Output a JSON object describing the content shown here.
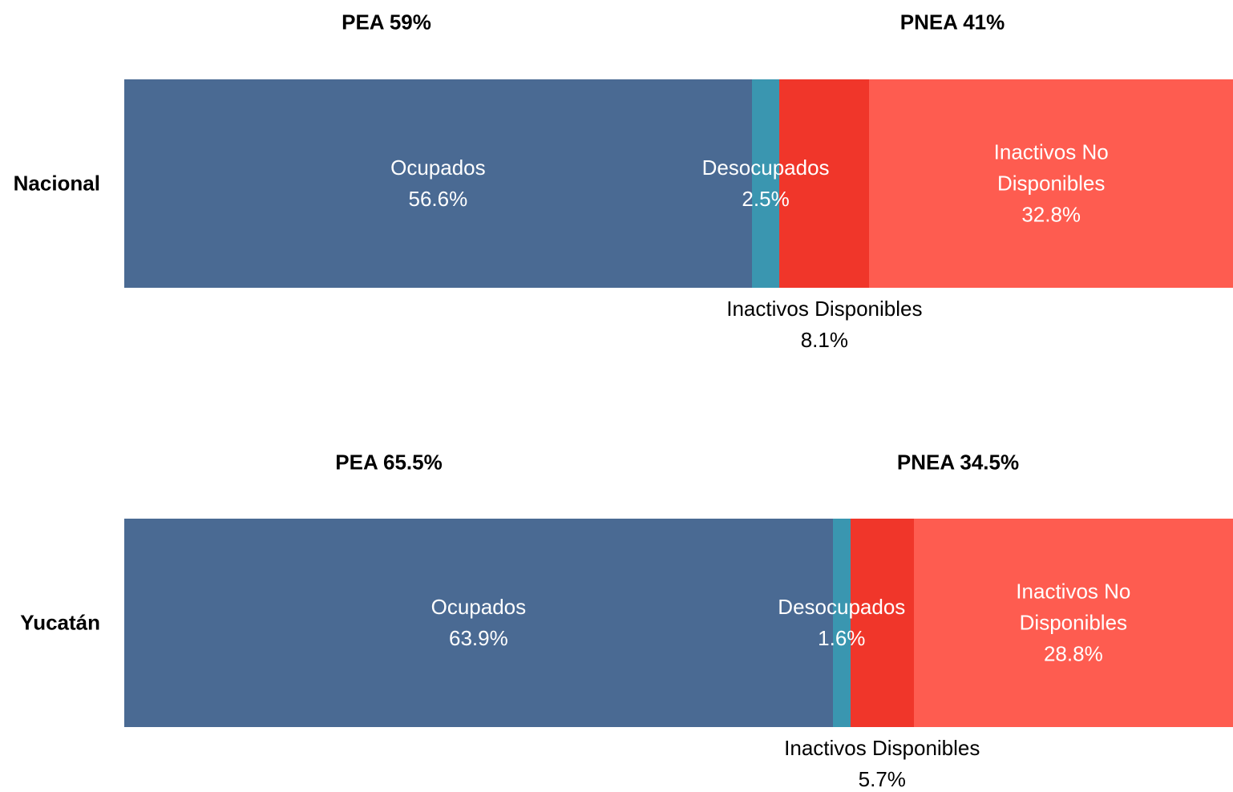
{
  "chart_data": {
    "type": "bar",
    "orientation": "horizontal",
    "stacked": true,
    "categories": [
      "Nacional",
      "Yucatán"
    ],
    "annotations": [
      [
        "PEA 59%",
        "PNEA 41%"
      ],
      [
        "PEA 65.5%",
        "PNEA 34.5%"
      ]
    ],
    "xlim": [
      0,
      100
    ],
    "series": [
      {
        "name": "Ocupados",
        "color": "#4a6a93",
        "label_position": "inside",
        "values": [
          56.6,
          63.9
        ],
        "value_labels": [
          "56.6%",
          "63.9%"
        ]
      },
      {
        "name": "Desocupados",
        "color": "#3a96b0",
        "label_position": "inside",
        "values": [
          2.5,
          1.6
        ],
        "value_labels": [
          "2.5%",
          "1.6%"
        ]
      },
      {
        "name": "Inactivos Disponibles",
        "color": "#f0362a",
        "label_position": "below",
        "values": [
          8.1,
          5.7
        ],
        "value_labels": [
          "8.1%",
          "5.7%"
        ]
      },
      {
        "name": "Inactivos No Disponibles",
        "color": "#fe5c50",
        "label_position": "inside",
        "values": [
          32.8,
          28.8
        ],
        "value_labels": [
          "32.8%",
          "28.8%"
        ]
      }
    ]
  }
}
